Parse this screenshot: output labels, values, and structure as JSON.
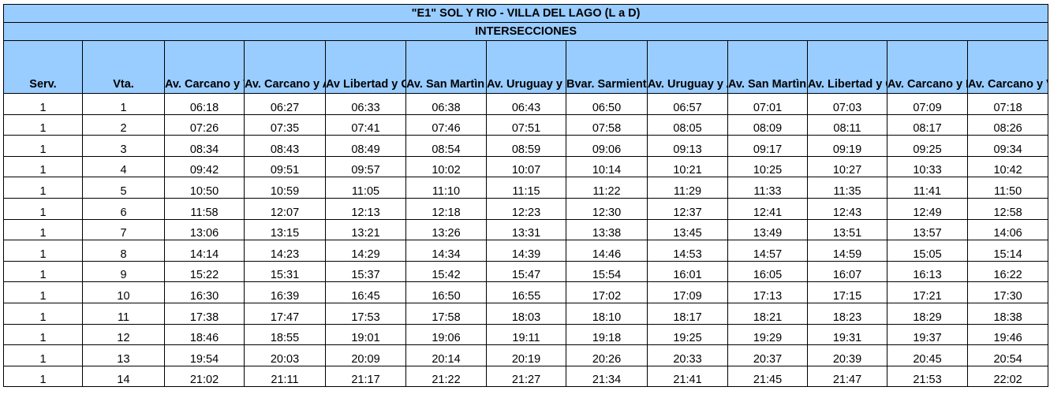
{
  "title": "\"E1\" SOL Y RIO - VILLA DEL LAGO (L a D)",
  "subtitle": "INTERSECCIONES",
  "columns": [
    "Serv.",
    "Vta.",
    "Av. Carcano y Victorica",
    "Av. Carcano y Atenas",
    "Av Libertad y Gral. Paz",
    "Av. San Martìn y Maipù",
    "Av. Uruguay y Amaghino",
    "Bvar. Sarmiento y Scarlatti",
    "Av. Uruguay y Almafuerte",
    "Av. San Martìn y Florida",
    "Av. Libertad y Gral. Paz",
    "Av. Carcano y Brazil",
    "Av. Carcano y Victorica"
  ],
  "rows": [
    [
      "1",
      "1",
      "06:18",
      "06:27",
      "06:33",
      "06:38",
      "06:43",
      "06:50",
      "06:57",
      "07:01",
      "07:03",
      "07:09",
      "07:18"
    ],
    [
      "1",
      "2",
      "07:26",
      "07:35",
      "07:41",
      "07:46",
      "07:51",
      "07:58",
      "08:05",
      "08:09",
      "08:11",
      "08:17",
      "08:26"
    ],
    [
      "1",
      "3",
      "08:34",
      "08:43",
      "08:49",
      "08:54",
      "08:59",
      "09:06",
      "09:13",
      "09:17",
      "09:19",
      "09:25",
      "09:34"
    ],
    [
      "1",
      "4",
      "09:42",
      "09:51",
      "09:57",
      "10:02",
      "10:07",
      "10:14",
      "10:21",
      "10:25",
      "10:27",
      "10:33",
      "10:42"
    ],
    [
      "1",
      "5",
      "10:50",
      "10:59",
      "11:05",
      "11:10",
      "11:15",
      "11:22",
      "11:29",
      "11:33",
      "11:35",
      "11:41",
      "11:50"
    ],
    [
      "1",
      "6",
      "11:58",
      "12:07",
      "12:13",
      "12:18",
      "12:23",
      "12:30",
      "12:37",
      "12:41",
      "12:43",
      "12:49",
      "12:58"
    ],
    [
      "1",
      "7",
      "13:06",
      "13:15",
      "13:21",
      "13:26",
      "13:31",
      "13:38",
      "13:45",
      "13:49",
      "13:51",
      "13:57",
      "14:06"
    ],
    [
      "1",
      "8",
      "14:14",
      "14:23",
      "14:29",
      "14:34",
      "14:39",
      "14:46",
      "14:53",
      "14:57",
      "14:59",
      "15:05",
      "15:14"
    ],
    [
      "1",
      "9",
      "15:22",
      "15:31",
      "15:37",
      "15:42",
      "15:47",
      "15:54",
      "16:01",
      "16:05",
      "16:07",
      "16:13",
      "16:22"
    ],
    [
      "1",
      "10",
      "16:30",
      "16:39",
      "16:45",
      "16:50",
      "16:55",
      "17:02",
      "17:09",
      "17:13",
      "17:15",
      "17:21",
      "17:30"
    ],
    [
      "1",
      "11",
      "17:38",
      "17:47",
      "17:53",
      "17:58",
      "18:03",
      "18:10",
      "18:17",
      "18:21",
      "18:23",
      "18:29",
      "18:38"
    ],
    [
      "1",
      "12",
      "18:46",
      "18:55",
      "19:01",
      "19:06",
      "19:11",
      "19:18",
      "19:25",
      "19:29",
      "19:31",
      "19:37",
      "19:46"
    ],
    [
      "1",
      "13",
      "19:54",
      "20:03",
      "20:09",
      "20:14",
      "20:19",
      "20:26",
      "20:33",
      "20:37",
      "20:39",
      "20:45",
      "20:54"
    ],
    [
      "1",
      "14",
      "21:02",
      "21:11",
      "21:17",
      "21:22",
      "21:27",
      "21:34",
      "21:41",
      "21:45",
      "21:47",
      "21:53",
      "22:02"
    ]
  ],
  "colors": {
    "header_fill": "#99ccff",
    "border": "#000000"
  }
}
